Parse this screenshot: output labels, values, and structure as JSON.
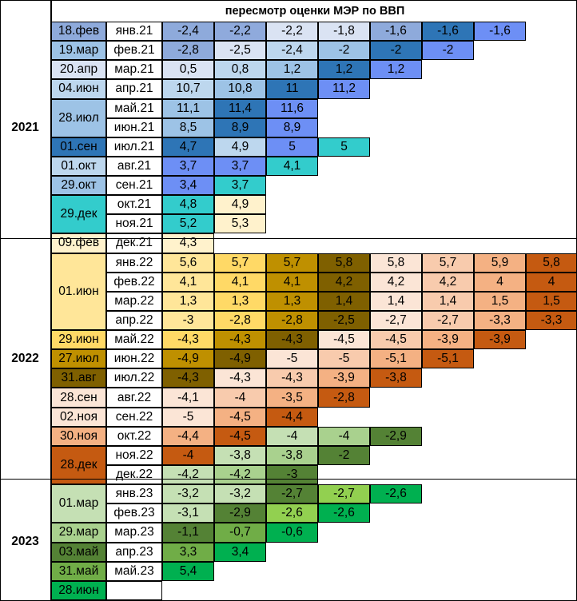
{
  "title": "пересмотр оценки МЭР по ВВП",
  "years": [
    {
      "label": "2021",
      "first": 0,
      "last": 10
    },
    {
      "label": "2022",
      "first": 11,
      "last": 23
    },
    {
      "label": "2023",
      "first": 24,
      "last": 29
    }
  ],
  "review_dates": [
    {
      "label": "18.фев",
      "first": 0,
      "last": 0,
      "color": "#8eaadb"
    },
    {
      "label": "19.мар",
      "first": 1,
      "last": 1,
      "color": "#9dc3e6"
    },
    {
      "label": "20.апр",
      "first": 2,
      "last": 2,
      "color": "#dae3f3"
    },
    {
      "label": "04.июн",
      "first": 3,
      "last": 3,
      "color": "#bdd7ee"
    },
    {
      "label": "28.июл",
      "first": 4,
      "last": 5,
      "color": "#9dc3e6"
    },
    {
      "label": "01.сен",
      "first": 6,
      "last": 6,
      "color": "#2e75b6"
    },
    {
      "label": "01.окт",
      "first": 7,
      "last": 7,
      "color": "#bdd7ee"
    },
    {
      "label": "29.окт",
      "first": 8,
      "last": 8,
      "color": "#9dc3e6"
    },
    {
      "label": "29.дек",
      "first": 9,
      "last": 10,
      "color": "#33cccc"
    },
    {
      "label": "09.фев",
      "first": 11,
      "last": 11,
      "color": "#fff2cc"
    },
    {
      "label": "01.июн",
      "first": 12,
      "last": 15,
      "color": "#ffe699"
    },
    {
      "label": "29.июн",
      "first": 16,
      "last": 16,
      "color": "#ffd966"
    },
    {
      "label": "27.июл",
      "first": 17,
      "last": 17,
      "color": "#bf9000"
    },
    {
      "label": "31.авг",
      "first": 18,
      "last": 18,
      "color": "#7f6000"
    },
    {
      "label": "28.сен",
      "first": 19,
      "last": 19,
      "color": "#fbe5d6"
    },
    {
      "label": "02.ноя",
      "first": 20,
      "last": 20,
      "color": "#fbe5d6"
    },
    {
      "label": "30.ноя",
      "first": 21,
      "last": 21,
      "color": "#f4b183"
    },
    {
      "label": "28.дек",
      "first": 22,
      "last": 23,
      "color": "#c55a11"
    },
    {
      "label": "01.мар",
      "first": 24,
      "last": 25,
      "color": "#c5e0b4"
    },
    {
      "label": "29.мар",
      "first": 26,
      "last": 26,
      "color": "#a9d18e"
    },
    {
      "label": "03.май",
      "first": 27,
      "last": 27,
      "color": "#548235"
    },
    {
      "label": "31.май",
      "first": 28,
      "last": 28,
      "color": "#70ad47"
    },
    {
      "label": "28.июн",
      "first": 29,
      "last": 29,
      "color": "#00b050"
    }
  ],
  "rows": [
    {
      "month": "янв.21",
      "values": [
        "-2,4",
        "-2,2",
        "-2,2",
        "-1,8",
        "-1,6",
        "-1,6",
        "-1,6"
      ],
      "colors": [
        "#8eaadb",
        "#8faadc",
        "#dae3f3",
        "#dae3f3",
        "#8eaadb",
        "#2e75b6",
        "#6d8ff5"
      ]
    },
    {
      "month": "фев.21",
      "values": [
        "-2,8",
        "-2,5",
        "-2,4",
        "-2",
        "-2",
        "-2"
      ],
      "colors": [
        "#8eaadb",
        "#dae3f3",
        "#bdd7ee",
        "#9dc3e6",
        "#2e75b6",
        "#6d8ff5"
      ]
    },
    {
      "month": "мар.21",
      "values": [
        "0,5",
        "0,8",
        "1,2",
        "1,2",
        "1,2"
      ],
      "colors": [
        "#dae3f3",
        "#bdd7ee",
        "#9dc3e6",
        "#2e75b6",
        "#6d8ff5"
      ]
    },
    {
      "month": "апр.21",
      "values": [
        "10,7",
        "10,8",
        "11",
        "11,2"
      ],
      "colors": [
        "#bdd7ee",
        "#9dc3e6",
        "#2e75b6",
        "#6d8ff5"
      ]
    },
    {
      "month": "май.21",
      "values": [
        "11,1",
        "11,4",
        "11,6"
      ],
      "colors": [
        "#9dc3e6",
        "#2e75b6",
        "#6d8ff5"
      ]
    },
    {
      "month": "июн.21",
      "values": [
        "8,5",
        "8,9",
        "8,9"
      ],
      "colors": [
        "#9dc3e6",
        "#2e75b6",
        "#6d8ff5"
      ]
    },
    {
      "month": "июл.21",
      "values": [
        "4,7",
        "4,9",
        "5",
        "5"
      ],
      "colors": [
        "#2e75b6",
        "#bdd7ee",
        "#6d8ff5",
        "#33cccc"
      ]
    },
    {
      "month": "авг.21",
      "values": [
        "3,7",
        "3,7",
        "4,1"
      ],
      "colors": [
        "#6d8ff5",
        "#6d8ff5",
        "#33cccc"
      ]
    },
    {
      "month": "сен.21",
      "values": [
        "3,4",
        "3,7"
      ],
      "colors": [
        "#6d8ff5",
        "#33cccc"
      ]
    },
    {
      "month": "окт.21",
      "values": [
        "4,8",
        "4,9"
      ],
      "colors": [
        "#33cccc",
        "#fff2cc"
      ]
    },
    {
      "month": "ноя.21",
      "values": [
        "5,2",
        "5,3"
      ],
      "colors": [
        "#33cccc",
        "#fff2cc"
      ]
    },
    {
      "month": "дек.21",
      "values": [
        "4,3"
      ],
      "colors": [
        "#fff2cc"
      ]
    },
    {
      "month": "янв.22",
      "values": [
        "5,6",
        "5,7",
        "5,7",
        "5,8",
        "5,8",
        "5,7",
        "5,9",
        "5,8"
      ],
      "colors": [
        "#ffe699",
        "#ffd966",
        "#bf9000",
        "#7f6000",
        "#fbe5d6",
        "#f8cbad",
        "#f4b183",
        "#c55a11"
      ]
    },
    {
      "month": "фев.22",
      "values": [
        "4,1",
        "4,1",
        "4,1",
        "4,2",
        "4,2",
        "4,2",
        "4",
        "4"
      ],
      "colors": [
        "#ffe699",
        "#ffd966",
        "#bf9000",
        "#7f6000",
        "#fbe5d6",
        "#f8cbad",
        "#f4b183",
        "#c55a11"
      ]
    },
    {
      "month": "мар.22",
      "values": [
        "1,3",
        "1,3",
        "1,3",
        "1,4",
        "1,4",
        "1,4",
        "1,5",
        "1,5"
      ],
      "colors": [
        "#ffe699",
        "#ffd966",
        "#bf9000",
        "#7f6000",
        "#fbe5d6",
        "#f8cbad",
        "#f4b183",
        "#c55a11"
      ]
    },
    {
      "month": "апр.22",
      "values": [
        "-3",
        "-2,8",
        "-2,8",
        "-2,5",
        "-2,7",
        "-2,7",
        "-3,3",
        "-3,3"
      ],
      "colors": [
        "#ffe699",
        "#ffd966",
        "#bf9000",
        "#7f6000",
        "#fbe5d6",
        "#f8cbad",
        "#f4b183",
        "#c55a11"
      ]
    },
    {
      "month": "май.22",
      "values": [
        "-4,3",
        "-4,3",
        "-4,3",
        "-4,5",
        "-4,5",
        "-3,9",
        "-3,9"
      ],
      "colors": [
        "#ffd966",
        "#bf9000",
        "#7f6000",
        "#fbe5d6",
        "#f8cbad",
        "#f4b183",
        "#c55a11"
      ]
    },
    {
      "month": "июн.22",
      "values": [
        "-4,9",
        "-4,9",
        "-5",
        "-5",
        "-5,1",
        "-5,1"
      ],
      "colors": [
        "#bf9000",
        "#7f6000",
        "#fbe5d6",
        "#f8cbad",
        "#f4b183",
        "#c55a11"
      ]
    },
    {
      "month": "июл.22",
      "values": [
        "-4,3",
        "-4,3",
        "-4,3",
        "-3,9",
        "-3,8"
      ],
      "colors": [
        "#7f6000",
        "#fbe5d6",
        "#f8cbad",
        "#f4b183",
        "#c55a11"
      ]
    },
    {
      "month": "авг.22",
      "values": [
        "-4,1",
        "-4",
        "-3,5",
        "-2,8"
      ],
      "colors": [
        "#fbe5d6",
        "#f8cbad",
        "#f4b183",
        "#c55a11"
      ]
    },
    {
      "month": "сен.22",
      "values": [
        "-5",
        "-4,5",
        "-4,4"
      ],
      "colors": [
        "#fbe5d6",
        "#f4b183",
        "#c55a11"
      ]
    },
    {
      "month": "окт.22",
      "values": [
        "-4,4",
        "-4,5",
        "-4",
        "-4",
        "-2,9"
      ],
      "colors": [
        "#f4b183",
        "#c55a11",
        "#c5e0b4",
        "#a9d18e",
        "#548235"
      ]
    },
    {
      "month": "ноя.22",
      "values": [
        "-4",
        "-3,8",
        "-3,8",
        "-2"
      ],
      "colors": [
        "#c55a11",
        "#c5e0b4",
        "#a9d18e",
        "#548235"
      ]
    },
    {
      "month": "дек.22",
      "values": [
        "-4,2",
        "-4,2",
        "-3"
      ],
      "colors": [
        "#c5e0b4",
        "#a9d18e",
        "#548235"
      ]
    },
    {
      "month": "янв.23",
      "values": [
        "-3,2",
        "-3,2",
        "-2,7",
        "-2,7",
        "-2,6"
      ],
      "colors": [
        "#c5e0b4",
        "#c5e0b4",
        "#548235",
        "#92d050",
        "#00b050"
      ]
    },
    {
      "month": "фев.23",
      "values": [
        "-3,1",
        "-2,9",
        "-2,6",
        "-2,6"
      ],
      "colors": [
        "#c5e0b4",
        "#548235",
        "#92d050",
        "#00b050"
      ]
    },
    {
      "month": "мар.23",
      "values": [
        "-1,1",
        "-0,7",
        "-0,6"
      ],
      "colors": [
        "#548235",
        "#70ad47",
        "#00b050"
      ]
    },
    {
      "month": "апр.23",
      "values": [
        "3,3",
        "3,4"
      ],
      "colors": [
        "#70ad47",
        "#00b050"
      ]
    },
    {
      "month": "май.23",
      "values": [
        "5,4"
      ],
      "colors": [
        "#00b050"
      ]
    },
    {
      "month": "",
      "values": [],
      "colors": []
    }
  ]
}
